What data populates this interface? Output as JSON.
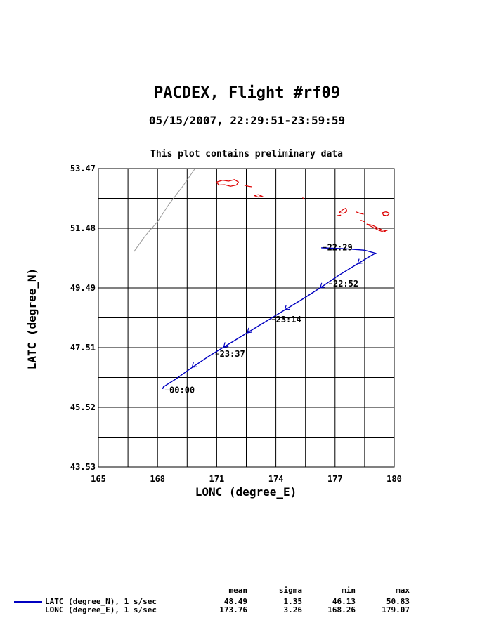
{
  "header": {
    "title": "PACDEX, Flight #rf09",
    "subtitle": "05/15/2007, 22:29:51-23:59:59",
    "note": "This plot contains preliminary data"
  },
  "chart_data": {
    "type": "line",
    "xlabel": "LONC (degree_E)",
    "ylabel": "LATC (degree_N)",
    "xlim": [
      165,
      180
    ],
    "ylim": [
      43.53,
      53.47
    ],
    "x_ticks": [
      "165",
      "168",
      "171",
      "174",
      "177",
      "180"
    ],
    "y_ticks": [
      "43.53",
      "45.52",
      "47.51",
      "49.49",
      "51.48",
      "53.47"
    ],
    "grid": true,
    "series": [
      {
        "name": "flight-track",
        "color": "#0000c0",
        "points": [
          [
            176.3,
            50.83
          ],
          [
            177.5,
            50.8
          ],
          [
            178.5,
            50.75
          ],
          [
            179.05,
            50.65
          ],
          [
            178.7,
            50.52
          ],
          [
            178.1,
            50.28
          ],
          [
            177.2,
            49.92
          ],
          [
            176.3,
            49.52
          ],
          [
            175.4,
            49.14
          ],
          [
            174.5,
            48.78
          ],
          [
            173.5,
            48.38
          ],
          [
            172.6,
            48.02
          ],
          [
            171.6,
            47.62
          ],
          [
            170.6,
            47.22
          ],
          [
            169.7,
            46.82
          ],
          [
            168.9,
            46.45
          ],
          [
            168.3,
            46.2
          ],
          [
            168.26,
            46.13
          ]
        ]
      },
      {
        "name": "previous-track",
        "color": "#999999",
        "points": [
          [
            166.8,
            50.7
          ],
          [
            167.4,
            51.25
          ],
          [
            168.0,
            51.7
          ],
          [
            168.6,
            52.3
          ],
          [
            169.3,
            52.9
          ],
          [
            169.9,
            53.47
          ]
        ]
      }
    ],
    "time_labels": [
      {
        "text": "22:29",
        "lon": 176.6,
        "lat": 50.75
      },
      {
        "text": "22:52",
        "lon": 176.9,
        "lat": 49.54
      },
      {
        "text": "23:14",
        "lon": 174.0,
        "lat": 48.35
      },
      {
        "text": "23:37",
        "lon": 171.15,
        "lat": 47.2
      },
      {
        "text": "00:00",
        "lon": 168.6,
        "lat": 46.0
      }
    ],
    "direction_arrows": [
      {
        "lon": 178.15,
        "lat": 50.3
      },
      {
        "lon": 176.25,
        "lat": 49.5
      },
      {
        "lon": 174.45,
        "lat": 48.76
      },
      {
        "lon": 172.55,
        "lat": 48.0
      },
      {
        "lon": 171.35,
        "lat": 47.52
      },
      {
        "lon": 169.75,
        "lat": 46.85
      }
    ],
    "coastline": {
      "color": "#dd0000",
      "shapes": [
        [
          [
            171.0,
            53.02
          ],
          [
            171.3,
            53.08
          ],
          [
            171.6,
            53.05
          ],
          [
            171.9,
            53.1
          ],
          [
            172.1,
            53.02
          ],
          [
            172.0,
            52.92
          ],
          [
            171.7,
            52.88
          ],
          [
            171.4,
            52.93
          ],
          [
            171.1,
            52.92
          ],
          [
            171.0,
            53.02
          ]
        ],
        [
          [
            172.4,
            52.92
          ],
          [
            172.6,
            52.88
          ],
          [
            172.8,
            52.86
          ]
        ],
        [
          [
            172.9,
            52.57
          ],
          [
            173.1,
            52.52
          ],
          [
            173.3,
            52.55
          ],
          [
            173.1,
            52.6
          ],
          [
            172.9,
            52.57
          ]
        ],
        [
          [
            175.35,
            52.5
          ],
          [
            175.45,
            52.44
          ]
        ],
        [
          [
            177.2,
            52.0
          ],
          [
            177.4,
            52.1
          ],
          [
            177.55,
            52.15
          ],
          [
            177.6,
            52.05
          ],
          [
            177.45,
            51.98
          ],
          [
            177.2,
            52.0
          ]
        ],
        [
          [
            177.1,
            51.9
          ],
          [
            177.3,
            51.92
          ]
        ],
        [
          [
            178.05,
            52.03
          ],
          [
            178.25,
            51.98
          ],
          [
            178.45,
            51.95
          ]
        ],
        [
          [
            178.3,
            51.75
          ],
          [
            178.5,
            51.7
          ]
        ],
        [
          [
            178.6,
            51.62
          ],
          [
            178.9,
            51.58
          ],
          [
            179.2,
            51.48
          ],
          [
            179.4,
            51.42
          ],
          [
            179.6,
            51.4
          ],
          [
            179.45,
            51.36
          ],
          [
            179.2,
            51.42
          ],
          [
            178.9,
            51.52
          ],
          [
            178.6,
            51.62
          ]
        ],
        [
          [
            179.4,
            52.0
          ],
          [
            179.6,
            52.03
          ],
          [
            179.75,
            51.98
          ],
          [
            179.65,
            51.9
          ],
          [
            179.45,
            51.92
          ],
          [
            179.4,
            52.0
          ]
        ]
      ]
    }
  },
  "stats": {
    "headers": [
      "mean",
      "sigma",
      "min",
      "max"
    ],
    "swatch_color": "#0000c0",
    "rows": [
      {
        "label": "LATC (degree_N), 1 s/sec",
        "values": [
          "48.49",
          "1.35",
          "46.13",
          "50.83"
        ]
      },
      {
        "label": "LONC (degree_E), 1 s/sec",
        "values": [
          "173.76",
          "3.26",
          "168.26",
          "179.07"
        ]
      }
    ]
  }
}
